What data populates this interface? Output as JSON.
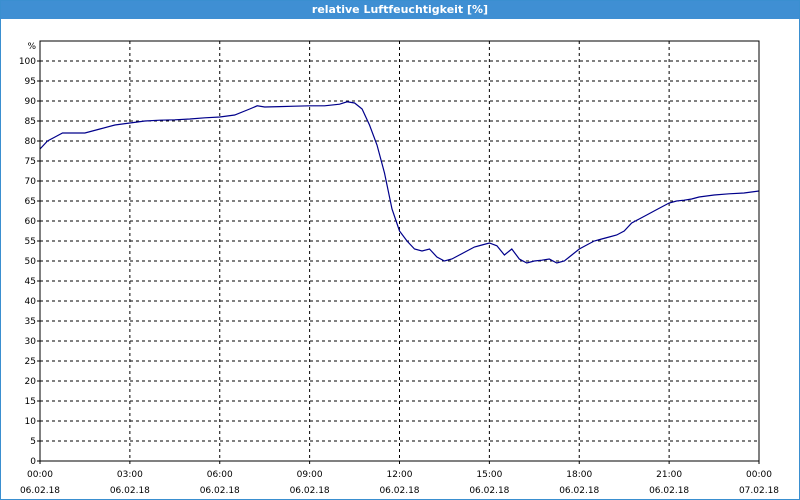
{
  "window": {
    "title": "relative Luftfeuchtigkeit [%]"
  },
  "colors": {
    "titlebar": "#3f8fd3",
    "line": "#00008b",
    "grid": "#000000"
  },
  "chart_data": {
    "type": "line",
    "title": "relative Luftfeuchtigkeit [%]",
    "ylabel": "%",
    "xlabel": "",
    "ylim": [
      0,
      105
    ],
    "yticks": [
      0,
      5,
      10,
      15,
      20,
      25,
      30,
      35,
      40,
      45,
      50,
      55,
      60,
      65,
      70,
      75,
      80,
      85,
      90,
      95,
      100
    ],
    "xlim": [
      "06.02.18 00:00",
      "07.02.18 00:00"
    ],
    "xticks": [
      {
        "time": "00:00",
        "date": "06.02.18"
      },
      {
        "time": "03:00",
        "date": "06.02.18"
      },
      {
        "time": "06:00",
        "date": "06.02.18"
      },
      {
        "time": "09:00",
        "date": "06.02.18"
      },
      {
        "time": "12:00",
        "date": "06.02.18"
      },
      {
        "time": "15:00",
        "date": "06.02.18"
      },
      {
        "time": "18:00",
        "date": "06.02.18"
      },
      {
        "time": "21:00",
        "date": "06.02.18"
      },
      {
        "time": "00:00",
        "date": "07.02.18"
      }
    ],
    "grid": true,
    "series": [
      {
        "x": [
          "00:00",
          "00:15",
          "00:30",
          "00:45",
          "01:00",
          "01:30",
          "02:00",
          "02:30",
          "03:00",
          "03:30",
          "04:00",
          "04:30",
          "05:00",
          "05:30",
          "06:00",
          "06:30",
          "07:00",
          "07:15",
          "07:30",
          "08:00",
          "08:30",
          "09:00",
          "09:30",
          "10:00",
          "10:15",
          "10:30",
          "10:45",
          "11:00",
          "11:15",
          "11:30",
          "11:45",
          "12:00",
          "12:15",
          "12:30",
          "12:45",
          "13:00",
          "13:15",
          "13:30",
          "13:45",
          "14:00",
          "14:15",
          "14:30",
          "14:45",
          "15:00",
          "15:15",
          "15:30",
          "15:45",
          "16:00",
          "16:15",
          "16:30",
          "16:45",
          "17:00",
          "17:15",
          "17:30",
          "17:45",
          "18:00",
          "18:15",
          "18:30",
          "18:45",
          "19:00",
          "19:15",
          "19:30",
          "19:45",
          "20:00",
          "20:15",
          "20:30",
          "20:45",
          "21:00",
          "21:15",
          "21:30",
          "21:45",
          "22:00",
          "22:30",
          "23:00",
          "23:30",
          "00:00"
        ],
        "values": [
          78,
          80,
          81,
          82,
          82,
          82,
          83,
          84,
          84.5,
          85,
          85.2,
          85.3,
          85.5,
          85.8,
          86,
          86.5,
          88,
          88.8,
          88.5,
          88.6,
          88.7,
          88.8,
          88.8,
          89.2,
          89.8,
          89.5,
          88,
          84,
          79,
          72,
          63,
          57.5,
          55,
          53,
          52.5,
          53,
          51,
          50,
          50.5,
          51.5,
          52.5,
          53.5,
          54,
          54.5,
          53.8,
          51.5,
          53,
          50.5,
          49.5,
          50,
          50.2,
          50.5,
          49.5,
          50,
          51.5,
          53,
          54,
          55,
          55.5,
          56,
          56.5,
          57.5,
          59.5,
          60.5,
          61.5,
          62.5,
          63.5,
          64.5,
          65,
          65.2,
          65.5,
          66,
          66.5,
          66.8,
          67,
          67.5
        ]
      }
    ]
  }
}
